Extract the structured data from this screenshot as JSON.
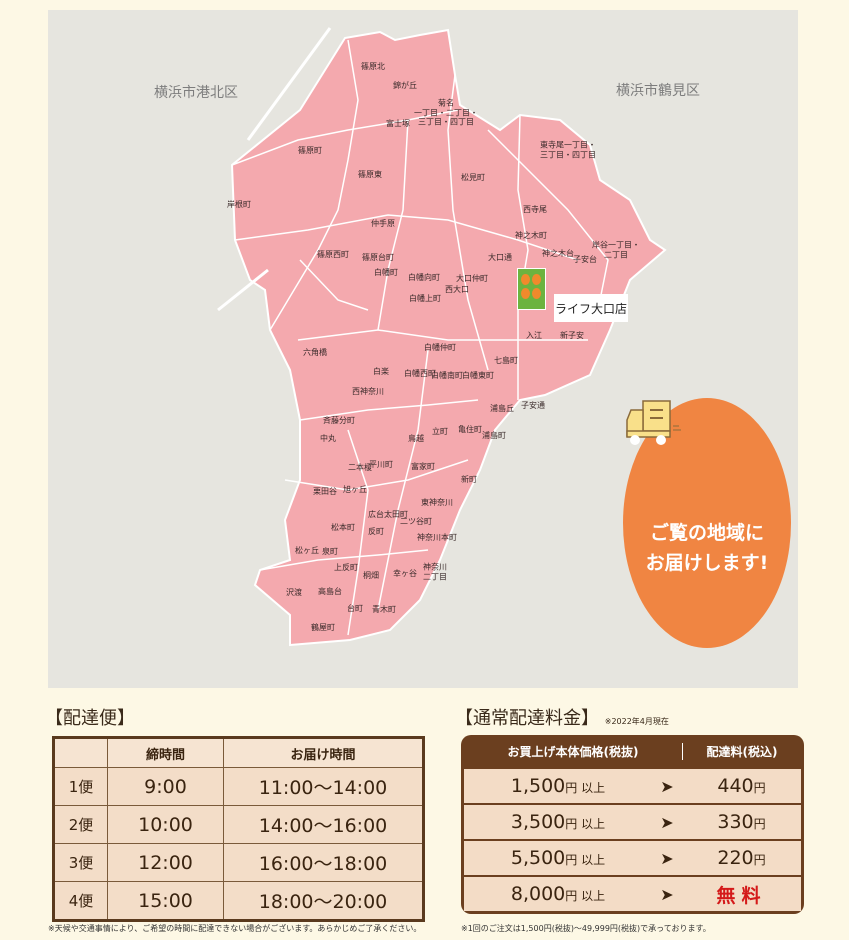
{
  "map": {
    "wards": [
      "横浜市港北区",
      "横浜市鶴見区"
    ],
    "areas": [
      "篠原北",
      "錦が丘",
      "菊名\n一丁目・二丁目・\n三丁目・四丁目",
      "富士塚",
      "篠原町",
      "篠原東",
      "岸根町",
      "松見町",
      "西寺尾",
      "東寺尾一丁目・\n三丁目・四丁目",
      "仲手原",
      "篠原西町",
      "篠原台町",
      "白幡町",
      "白幡向町",
      "大口仲町",
      "西大口",
      "大口通",
      "神之木町",
      "神之木台",
      "子安台",
      "岸谷一丁目・\n二丁目",
      "入江",
      "新子安",
      "白幡上町",
      "白幡仲町",
      "六角橋",
      "白楽",
      "白幡西町",
      "白幡南町",
      "白幡東町",
      "七島町",
      "西神奈川",
      "浦島丘",
      "斉藤分町",
      "中丸",
      "鳥越",
      "立町",
      "亀住町",
      "浦島町",
      "子安通",
      "二本榎",
      "平川町",
      "富家町",
      "新町",
      "栗田谷",
      "旭ヶ丘",
      "広台太田町",
      "二ツ谷町",
      "東神奈川",
      "松本町",
      "反町",
      "神奈川本町",
      "松ヶ丘",
      "泉町",
      "上反町",
      "桐畑",
      "幸ヶ谷",
      "神奈川\n二丁目",
      "沢渡",
      "高島台",
      "台町",
      "青木町",
      "鶴屋町"
    ],
    "store": "ライフ大口店",
    "badge": "ご覧の地域に\nお届けします!",
    "colors": {
      "area": "#f4a9ae",
      "background": "#e6e5df",
      "badge": "#f08542",
      "store_logo": "#6cb33f"
    }
  },
  "delivery": {
    "title": "【配達便】",
    "headers": [
      "",
      "締時間",
      "お届け時間"
    ],
    "rows": [
      [
        "1便",
        "9:00",
        "11:00〜14:00"
      ],
      [
        "2便",
        "10:00",
        "14:00〜16:00"
      ],
      [
        "3便",
        "12:00",
        "16:00〜18:00"
      ],
      [
        "4便",
        "15:00",
        "18:00〜20:00"
      ]
    ],
    "note": "※天候や交通事情により、ご希望の時間に配達できない場合がございます。あらかじめご了承ください。"
  },
  "fees": {
    "title": "【通常配達料金】",
    "as_of": "※2022年4月現在",
    "headers": [
      "お買上げ本体価格(税抜)",
      "配達料(税込)"
    ],
    "rows": [
      {
        "amount": "1,500",
        "suffix": "円 以上",
        "fee": "440",
        "unit": "円"
      },
      {
        "amount": "3,500",
        "suffix": "円 以上",
        "fee": "330",
        "unit": "円"
      },
      {
        "amount": "5,500",
        "suffix": "円 以上",
        "fee": "220",
        "unit": "円"
      },
      {
        "amount": "8,000",
        "suffix": "円 以上",
        "fee": "無料",
        "unit": ""
      }
    ],
    "arrow": "➤",
    "note": "※1回のご注文は1,500円(税抜)〜49,999円(税抜)で承っております。"
  }
}
